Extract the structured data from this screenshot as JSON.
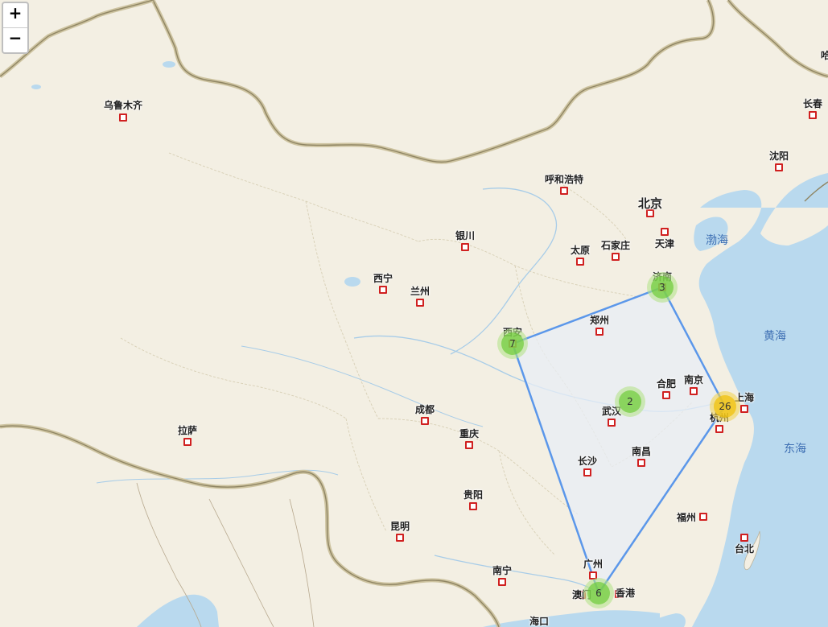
{
  "map": {
    "zoom": {
      "in_label": "+",
      "out_label": "−"
    },
    "colors": {
      "land": "#f3efe3",
      "water": "#b9d9ee",
      "border_intl": "#b8ad8a",
      "polygon_stroke": "#5b97ea",
      "polygon_fill": "#e8eef6"
    },
    "cities": [
      {
        "id": "urumqi",
        "name": "乌鲁木齐"
      },
      {
        "id": "changchun",
        "name": "长春"
      },
      {
        "id": "shenyang",
        "name": "沈阳"
      },
      {
        "id": "hohhot",
        "name": "呼和浩特"
      },
      {
        "id": "beijing",
        "name": "北京",
        "capital": true
      },
      {
        "id": "tianjin",
        "name": "天津"
      },
      {
        "id": "shijiazhuang",
        "name": "石家庄"
      },
      {
        "id": "taiyuan",
        "name": "太原"
      },
      {
        "id": "yinchuan",
        "name": "银川"
      },
      {
        "id": "xining",
        "name": "西宁"
      },
      {
        "id": "lanzhou",
        "name": "兰州"
      },
      {
        "id": "jinan",
        "name": "济南"
      },
      {
        "id": "zhengzhou",
        "name": "郑州"
      },
      {
        "id": "xian",
        "name": "西安"
      },
      {
        "id": "hefei",
        "name": "合肥"
      },
      {
        "id": "nanjing",
        "name": "南京"
      },
      {
        "id": "shanghai",
        "name": "上海"
      },
      {
        "id": "hangzhou",
        "name": "杭州"
      },
      {
        "id": "wuhan",
        "name": "武汉"
      },
      {
        "id": "chengdu",
        "name": "成都"
      },
      {
        "id": "chongqing",
        "name": "重庆"
      },
      {
        "id": "lhasa",
        "name": "拉萨"
      },
      {
        "id": "changsha",
        "name": "长沙"
      },
      {
        "id": "nanchang",
        "name": "南昌"
      },
      {
        "id": "fuzhou",
        "name": "福州"
      },
      {
        "id": "taipei",
        "name": "台北"
      },
      {
        "id": "guiyang",
        "name": "贵阳"
      },
      {
        "id": "kunming",
        "name": "昆明"
      },
      {
        "id": "nanning",
        "name": "南宁"
      },
      {
        "id": "guangzhou",
        "name": "广州"
      },
      {
        "id": "macau",
        "name": "澳门"
      },
      {
        "id": "hongkong",
        "name": "香港"
      },
      {
        "id": "haikou",
        "name": "海口"
      },
      {
        "id": "harbin_partial",
        "name": "哈"
      }
    ],
    "seas": [
      {
        "id": "bohai",
        "name": "渤海"
      },
      {
        "id": "yellow",
        "name": "黄海"
      },
      {
        "id": "east",
        "name": "东海"
      }
    ],
    "clusters": [
      {
        "id": "jinan",
        "count": "3",
        "size": "small"
      },
      {
        "id": "xian",
        "count": "7",
        "size": "small"
      },
      {
        "id": "wuhan",
        "count": "2",
        "size": "small"
      },
      {
        "id": "shanghai",
        "count": "26",
        "size": "medium"
      },
      {
        "id": "guangzhou",
        "count": "6",
        "size": "small"
      }
    ]
  }
}
